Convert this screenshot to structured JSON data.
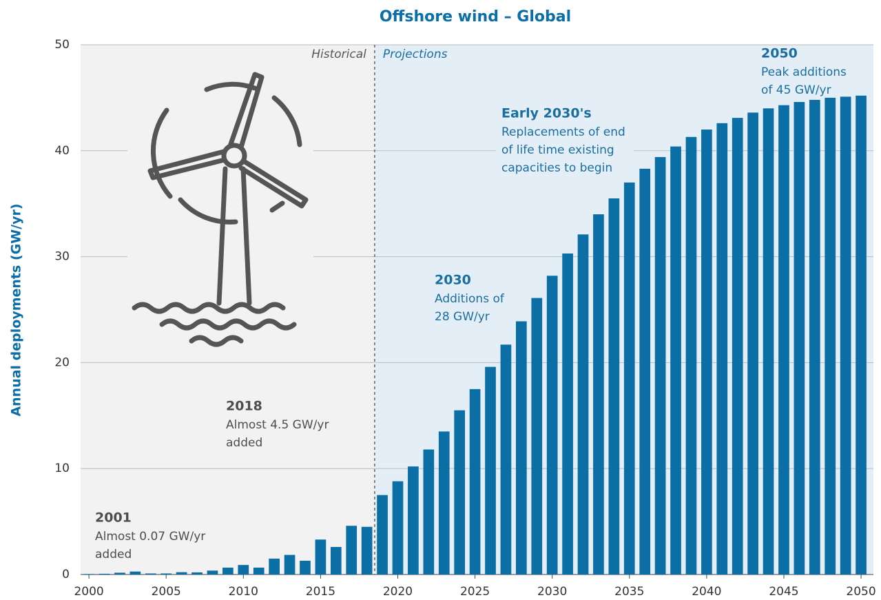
{
  "chart_data": {
    "type": "bar",
    "title": "Offshore wind – Global",
    "y_label": "Annual deployments (GW/yr)",
    "x": [
      2000,
      2001,
      2002,
      2003,
      2004,
      2005,
      2006,
      2007,
      2008,
      2009,
      2010,
      2011,
      2012,
      2013,
      2014,
      2015,
      2016,
      2017,
      2018,
      2019,
      2020,
      2021,
      2022,
      2023,
      2024,
      2025,
      2026,
      2027,
      2028,
      2029,
      2030,
      2031,
      2032,
      2033,
      2034,
      2035,
      2036,
      2037,
      2038,
      2039,
      2040,
      2041,
      2042,
      2043,
      2044,
      2045,
      2046,
      2047,
      2048,
      2049,
      2050
    ],
    "values": [
      0.05,
      0.07,
      0.17,
      0.28,
      0.1,
      0.1,
      0.22,
      0.2,
      0.37,
      0.65,
      0.9,
      0.65,
      1.5,
      1.85,
      1.3,
      3.3,
      2.6,
      4.6,
      4.5,
      7.5,
      8.8,
      10.2,
      11.8,
      13.5,
      15.5,
      17.5,
      19.6,
      21.7,
      23.9,
      26.1,
      28.2,
      30.3,
      32.1,
      34.0,
      35.5,
      37.0,
      38.3,
      39.4,
      40.4,
      41.3,
      42.0,
      42.6,
      43.1,
      43.6,
      44.0,
      44.3,
      44.6,
      44.8,
      45.0,
      45.1,
      45.2
    ],
    "color": "#0b6fa5",
    "xlim": [
      1999.46,
      2050.8
    ],
    "xticks": [
      2000,
      2005,
      2010,
      2015,
      2020,
      2025,
      2030,
      2035,
      2040,
      2045,
      2050
    ],
    "ylim": [
      0,
      50
    ],
    "yticks": [
      0,
      10,
      20,
      30,
      40,
      50
    ],
    "grid": true,
    "projection_start": 2018.5,
    "region_labels": [
      "Historical",
      "Projections"
    ],
    "annotations": [
      {
        "title": "2001",
        "lines": [
          "Almost 0.07 GW/yr",
          "added"
        ],
        "color": "#4d4d4d"
      },
      {
        "title": "2018",
        "lines": [
          "Almost 4.5 GW/yr",
          "added"
        ],
        "color": "#4d4d4d"
      },
      {
        "title": "2030",
        "lines": [
          "Additions of",
          "28 GW/yr"
        ],
        "color": "#1a6e9e"
      },
      {
        "title": "Early 2030's",
        "lines": [
          "Replacements of end",
          "of life time existing",
          "capacities to begin"
        ],
        "color": "#1a6e9e"
      },
      {
        "title": "2050",
        "lines": [
          "Peak additions",
          "of 45 GW/yr"
        ],
        "color": "#1a6e9e"
      }
    ]
  }
}
